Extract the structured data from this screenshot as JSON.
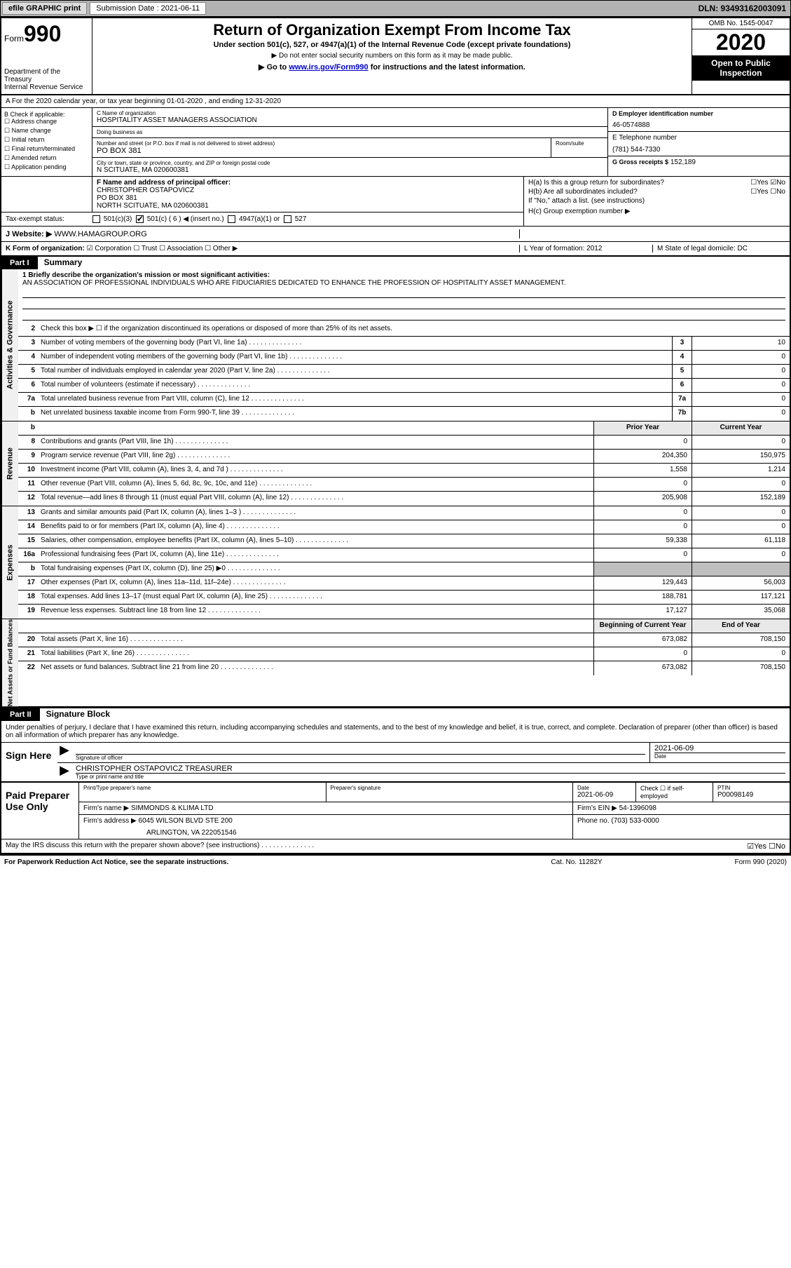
{
  "topbar": {
    "efile": "efile GRAPHIC print",
    "sub_label": "Submission Date : 2021-06-11",
    "dln": "DLN: 93493162003091"
  },
  "header": {
    "form_prefix": "Form",
    "form_num": "990",
    "dept": "Department of the Treasury\nInternal Revenue Service",
    "title": "Return of Organization Exempt From Income Tax",
    "sub1": "Under section 501(c), 527, or 4947(a)(1) of the Internal Revenue Code (except private foundations)",
    "sub2": "▶ Do not enter social security numbers on this form as it may be made public.",
    "sub3_pre": "▶ Go to ",
    "sub3_link": "www.irs.gov/Form990",
    "sub3_post": " for instructions and the latest information.",
    "omb": "OMB No. 1545-0047",
    "year": "2020",
    "inspect": "Open to Public Inspection"
  },
  "rowA": "A   For the 2020 calendar year, or tax year beginning 01-01-2020    , and ending 12-31-2020",
  "B": {
    "label": "B Check if applicable:",
    "items": [
      "Address change",
      "Name change",
      "Initial return",
      "Final return/terminated",
      "Amended return",
      "Application pending"
    ]
  },
  "C": {
    "name_lbl": "C Name of organization",
    "name": "HOSPITALITY ASSET MANAGERS ASSOCIATION",
    "dba_lbl": "Doing business as",
    "dba": "",
    "addr_lbl": "Number and street (or P.O. box if mail is not delivered to street address)",
    "room_lbl": "Room/suite",
    "addr": "PO BOX 381",
    "city_lbl": "City or town, state or province, country, and ZIP or foreign postal code",
    "city": "N SCITUATE, MA  020600381"
  },
  "D": {
    "lbl": "D Employer identification number",
    "val": "46-0574888"
  },
  "E": {
    "lbl": "E Telephone number",
    "val": "(781) 544-7330"
  },
  "G": {
    "lbl": "G Gross receipts $",
    "val": "152,189"
  },
  "F": {
    "lbl": "F  Name and address of principal officer:",
    "name": "CHRISTOPHER OSTAPOVICZ",
    "addr1": "PO BOX 381",
    "addr2": "NORTH SCITUATE, MA  020600381"
  },
  "tax_status": {
    "lbl": "Tax-exempt status:",
    "opt1": "501(c)(3)",
    "opt2": "501(c) ( 6 ) ◀ (insert no.)",
    "opt3": "4947(a)(1) or",
    "opt4": "527"
  },
  "H": {
    "a": "H(a)  Is this a group return for subordinates?",
    "a_ans": "☐Yes ☑No",
    "b": "H(b)  Are all subordinates included?",
    "b_ans": "☐Yes ☐No",
    "b_note": "If \"No,\" attach a list. (see instructions)",
    "c": "H(c)  Group exemption number ▶"
  },
  "J": {
    "lbl": "J   Website: ▶",
    "val": "WWW.HAMAGROUP.ORG"
  },
  "K": {
    "lbl": "K Form of organization:",
    "opts": "☑ Corporation  ☐ Trust  ☐ Association  ☐ Other ▶",
    "L": "L Year of formation: 2012",
    "M": "M State of legal domicile: DC"
  },
  "part1": {
    "hdr": "Part I",
    "title": "Summary",
    "line1_lbl": "1  Briefly describe the organization's mission or most significant activities:",
    "mission": "AN ASSOCIATION OF PROFESSIONAL INDIVIDUALS WHO ARE FIDUCIARIES DEDICATED TO ENHANCE THE PROFESSION OF HOSPITALITY ASSET MANAGEMENT.",
    "line2": "Check this box ▶ ☐  if the organization discontinued its operations or disposed of more than 25% of its net assets.",
    "gov_lines": [
      {
        "n": "3",
        "d": "Number of voting members of the governing body (Part VI, line 1a)",
        "b": "3",
        "v": "10"
      },
      {
        "n": "4",
        "d": "Number of independent voting members of the governing body (Part VI, line 1b)",
        "b": "4",
        "v": "0"
      },
      {
        "n": "5",
        "d": "Total number of individuals employed in calendar year 2020 (Part V, line 2a)",
        "b": "5",
        "v": "0"
      },
      {
        "n": "6",
        "d": "Total number of volunteers (estimate if necessary)",
        "b": "6",
        "v": "0"
      },
      {
        "n": "7a",
        "d": "Total unrelated business revenue from Part VIII, column (C), line 12",
        "b": "7a",
        "v": "0"
      },
      {
        "n": "b",
        "d": "Net unrelated business taxable income from Form 990-T, line 39",
        "b": "7b",
        "v": "0"
      }
    ],
    "col_prior": "Prior Year",
    "col_curr": "Current Year",
    "rev_lines": [
      {
        "n": "8",
        "d": "Contributions and grants (Part VIII, line 1h)",
        "p": "0",
        "c": "0"
      },
      {
        "n": "9",
        "d": "Program service revenue (Part VIII, line 2g)",
        "p": "204,350",
        "c": "150,975"
      },
      {
        "n": "10",
        "d": "Investment income (Part VIII, column (A), lines 3, 4, and 7d )",
        "p": "1,558",
        "c": "1,214"
      },
      {
        "n": "11",
        "d": "Other revenue (Part VIII, column (A), lines 5, 6d, 8c, 9c, 10c, and 11e)",
        "p": "0",
        "c": "0"
      },
      {
        "n": "12",
        "d": "Total revenue—add lines 8 through 11 (must equal Part VIII, column (A), line 12)",
        "p": "205,908",
        "c": "152,189"
      }
    ],
    "exp_lines": [
      {
        "n": "13",
        "d": "Grants and similar amounts paid (Part IX, column (A), lines 1–3 )",
        "p": "0",
        "c": "0"
      },
      {
        "n": "14",
        "d": "Benefits paid to or for members (Part IX, column (A), line 4)",
        "p": "0",
        "c": "0"
      },
      {
        "n": "15",
        "d": "Salaries, other compensation, employee benefits (Part IX, column (A), lines 5–10)",
        "p": "59,338",
        "c": "61,118"
      },
      {
        "n": "16a",
        "d": "Professional fundraising fees (Part IX, column (A), line 11e)",
        "p": "0",
        "c": "0"
      },
      {
        "n": "b",
        "d": "Total fundraising expenses (Part IX, column (D), line 25) ▶0",
        "p": "",
        "c": "",
        "gray": true
      },
      {
        "n": "17",
        "d": "Other expenses (Part IX, column (A), lines 11a–11d, 11f–24e)",
        "p": "129,443",
        "c": "56,003"
      },
      {
        "n": "18",
        "d": "Total expenses. Add lines 13–17 (must equal Part IX, column (A), line 25)",
        "p": "188,781",
        "c": "117,121"
      },
      {
        "n": "19",
        "d": "Revenue less expenses. Subtract line 18 from line 12",
        "p": "17,127",
        "c": "35,068"
      }
    ],
    "col_boy": "Beginning of Current Year",
    "col_eoy": "End of Year",
    "net_lines": [
      {
        "n": "20",
        "d": "Total assets (Part X, line 16)",
        "p": "673,082",
        "c": "708,150"
      },
      {
        "n": "21",
        "d": "Total liabilities (Part X, line 26)",
        "p": "0",
        "c": "0"
      },
      {
        "n": "22",
        "d": "Net assets or fund balances. Subtract line 21 from line 20",
        "p": "673,082",
        "c": "708,150"
      }
    ]
  },
  "part2": {
    "hdr": "Part II",
    "title": "Signature Block",
    "intro": "Under penalties of perjury, I declare that I have examined this return, including accompanying schedules and statements, and to the best of my knowledge and belief, it is true, correct, and complete. Declaration of preparer (other than officer) is based on all information of which preparer has any knowledge.",
    "sign_here": "Sign Here",
    "sig_lbl": "Signature of officer",
    "sig_date": "2021-06-09",
    "date_lbl": "Date",
    "officer": "CHRISTOPHER OSTAPOVICZ  TREASURER",
    "officer_lbl": "Type or print name and title",
    "paid": "Paid Preparer Use Only",
    "prep_name_lbl": "Print/Type preparer's name",
    "prep_sig_lbl": "Preparer's signature",
    "prep_date": "2021-06-09",
    "check_se": "Check ☐ if self-employed",
    "ptin_lbl": "PTIN",
    "ptin": "P00098149",
    "firm_name_lbl": "Firm's name    ▶",
    "firm_name": "SIMMONDS & KLIMA LTD",
    "firm_ein_lbl": "Firm's EIN ▶",
    "firm_ein": "54-1396098",
    "firm_addr_lbl": "Firm's address ▶",
    "firm_addr1": "6045 WILSON BLVD STE 200",
    "firm_addr2": "ARLINGTON, VA  222051546",
    "phone_lbl": "Phone no.",
    "phone": "(703) 533-0000",
    "discuss": "May the IRS discuss this return with the preparer shown above? (see instructions)",
    "discuss_ans": "☑Yes  ☐No"
  },
  "footer": {
    "left": "For Paperwork Reduction Act Notice, see the separate instructions.",
    "mid": "Cat. No. 11282Y",
    "right": "Form 990 (2020)"
  }
}
